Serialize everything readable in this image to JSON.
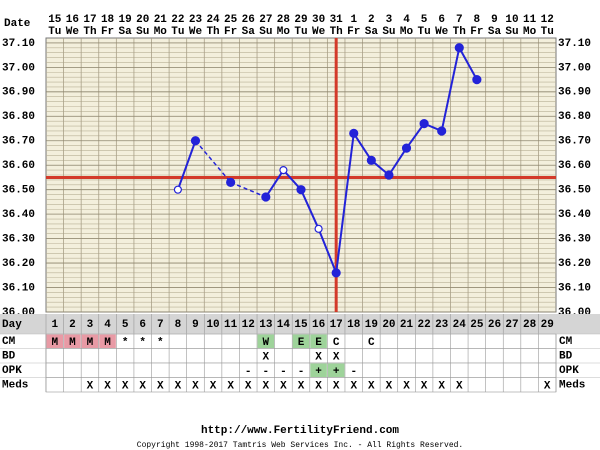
{
  "header": {
    "date_label": "Date",
    "dates": [
      "15",
      "16",
      "17",
      "18",
      "19",
      "20",
      "21",
      "22",
      "23",
      "24",
      "25",
      "26",
      "27",
      "28",
      "29",
      "30",
      "31",
      "1",
      "2",
      "3",
      "4",
      "5",
      "6",
      "7",
      "8",
      "9",
      "10",
      "11",
      "12"
    ],
    "weekdays": [
      "Tu",
      "We",
      "Th",
      "Fr",
      "Sa",
      "Su",
      "Mo",
      "Tu",
      "We",
      "Th",
      "Fr",
      "Sa",
      "Su",
      "Mo",
      "Tu",
      "We",
      "Th",
      "Fr",
      "Sa",
      "Su",
      "Mo",
      "Tu",
      "We",
      "Th",
      "Fr",
      "Sa",
      "Su",
      "Mo",
      "Tu"
    ]
  },
  "chart_data": {
    "type": "line",
    "x_label": "Day",
    "categories": [
      1,
      2,
      3,
      4,
      5,
      6,
      7,
      8,
      9,
      10,
      11,
      12,
      13,
      14,
      15,
      16,
      17,
      18,
      19,
      20,
      21,
      22,
      23,
      24,
      25,
      26,
      27,
      28,
      29
    ],
    "series": [
      {
        "color": "#2323d8",
        "values": [
          null,
          null,
          null,
          null,
          null,
          null,
          null,
          36.5,
          36.7,
          null,
          36.53,
          null,
          36.47,
          36.58,
          36.5,
          36.34,
          36.16,
          36.73,
          36.62,
          36.56,
          36.67,
          36.77,
          36.74,
          37.08,
          36.95,
          null,
          null,
          null,
          null
        ],
        "open_markers": [
          null,
          null,
          null,
          null,
          null,
          null,
          null,
          true,
          false,
          null,
          false,
          null,
          false,
          true,
          false,
          true,
          false,
          false,
          false,
          false,
          false,
          false,
          false,
          false,
          false,
          null,
          null,
          null,
          null
        ]
      }
    ],
    "ylim": [
      36.0,
      37.12
    ],
    "yticks": [
      {
        "value": 36.0,
        "label": "36.00"
      },
      {
        "value": 36.1,
        "label": "36.10"
      },
      {
        "value": 36.2,
        "label": "36.20"
      },
      {
        "value": 36.3,
        "label": "36.30"
      },
      {
        "value": 36.4,
        "label": "36.40"
      },
      {
        "value": 36.5,
        "label": "36.50"
      },
      {
        "value": 36.6,
        "label": "36.60"
      },
      {
        "value": 36.7,
        "label": "36.70"
      },
      {
        "value": 36.8,
        "label": "36.80"
      },
      {
        "value": 36.9,
        "label": "36.90"
      },
      {
        "value": 37.0,
        "label": "37.00"
      },
      {
        "value": 37.1,
        "label": "37.10"
      }
    ],
    "ygrid_step": 0.02,
    "grid": true,
    "coverline": 36.55,
    "ovulation_day": 17,
    "reference_color": "#d33a2a",
    "background": "#f3efdc"
  },
  "rows": [
    {
      "label": "CM",
      "cells": [
        "M",
        "M",
        "M",
        "M",
        "*",
        "*",
        "*",
        null,
        null,
        null,
        null,
        null,
        "W",
        null,
        "E",
        "E",
        "C",
        null,
        "C",
        null,
        null,
        null,
        null,
        null,
        null,
        null,
        null,
        null,
        null
      ],
      "highlight": {
        "M": "#e89aa5",
        "W": "#9ed39a",
        "E": "#9ed39a"
      }
    },
    {
      "label": "BD",
      "cells": [
        null,
        null,
        null,
        null,
        null,
        null,
        null,
        null,
        null,
        null,
        null,
        null,
        "X",
        null,
        null,
        "X",
        "X",
        null,
        null,
        null,
        null,
        null,
        null,
        null,
        null,
        null,
        null,
        null,
        null
      ],
      "highlight": {}
    },
    {
      "label": "OPK",
      "cells": [
        null,
        null,
        null,
        null,
        null,
        null,
        null,
        null,
        null,
        null,
        null,
        "-",
        "-",
        "-",
        "-",
        "+",
        "+",
        "-",
        null,
        null,
        null,
        null,
        null,
        null,
        null,
        null,
        null,
        null,
        null
      ],
      "highlight": {
        "+": "#9ed39a"
      }
    },
    {
      "label": "Meds",
      "cells": [
        null,
        null,
        "X",
        "X",
        "X",
        "X",
        "X",
        "X",
        "X",
        "X",
        "X",
        "X",
        "X",
        "X",
        "X",
        "X",
        "X",
        "X",
        "X",
        "X",
        "X",
        "X",
        "X",
        "X",
        null,
        null,
        null,
        null,
        "X"
      ],
      "highlight": {}
    }
  ],
  "footer": {
    "url": "http://www.FertilityFriend.com",
    "copyright": "Copyright 1998-2017 Tamtris Web Services Inc. - All Rights Reserved."
  }
}
